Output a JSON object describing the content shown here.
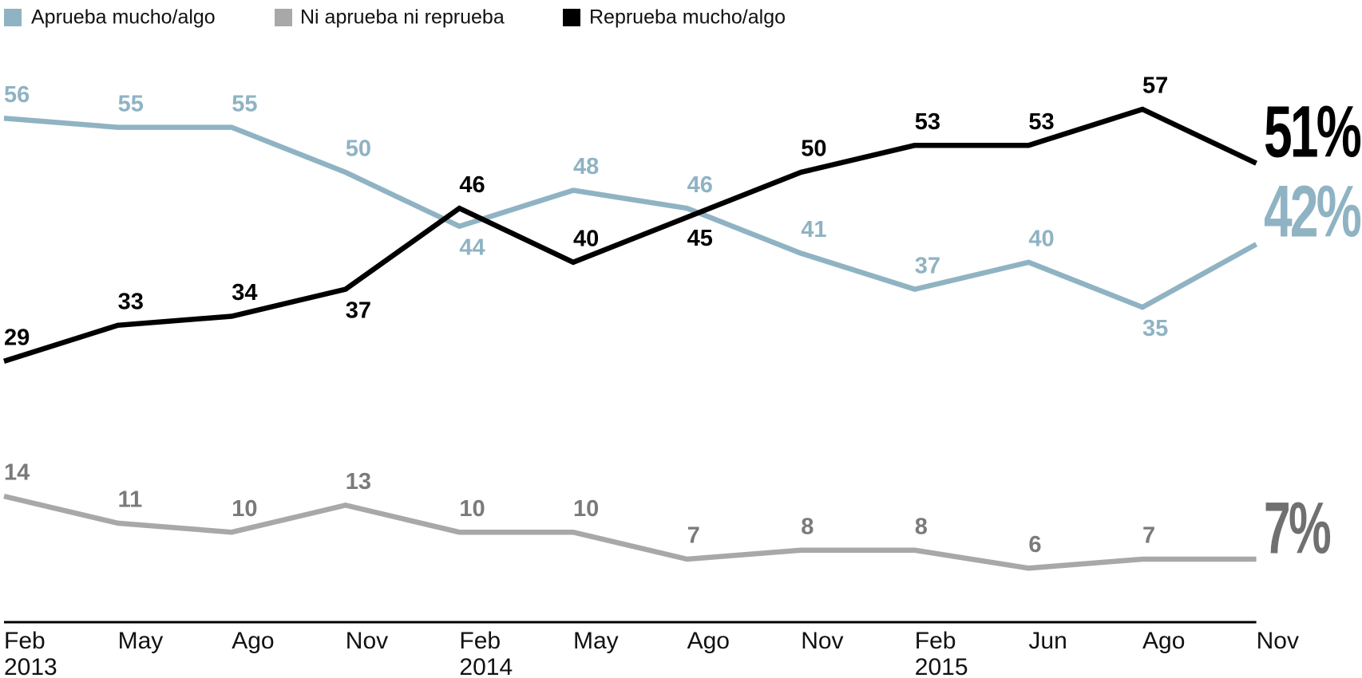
{
  "chart_data": {
    "type": "line",
    "categories": [
      "Feb 2013",
      "May",
      "Ago",
      "Nov",
      "Feb 2014",
      "May",
      "Ago",
      "Nov",
      "Feb 2015",
      "Jun",
      "Ago",
      "Nov"
    ],
    "series": [
      {
        "name": "Aprueba mucho/algo",
        "color": "#8fb3c3",
        "values": [
          56,
          55,
          55,
          50,
          44,
          48,
          46,
          41,
          37,
          40,
          35,
          42
        ],
        "value_labels": [
          "56",
          "55",
          "55",
          "50",
          "44",
          "48",
          "46",
          "41",
          "37",
          "40",
          "35",
          "42%"
        ]
      },
      {
        "name": "Ni aprueba ni reprueba",
        "color": "#a8a8a8",
        "values": [
          14,
          11,
          10,
          13,
          10,
          10,
          7,
          8,
          8,
          6,
          7,
          7
        ],
        "value_labels": [
          "14",
          "11",
          "10",
          "13",
          "10",
          "10",
          "7",
          "8",
          "8",
          "6",
          "7",
          "7%"
        ]
      },
      {
        "name": "Reprueba mucho/algo",
        "color": "#000000",
        "values": [
          29,
          33,
          34,
          37,
          46,
          40,
          45,
          50,
          53,
          53,
          57,
          51
        ],
        "value_labels": [
          "29",
          "33",
          "34",
          "37",
          "46",
          "40",
          "45",
          "50",
          "53",
          "53",
          "57",
          "51%"
        ]
      }
    ],
    "ylim": [
      0,
      70
    ]
  }
}
